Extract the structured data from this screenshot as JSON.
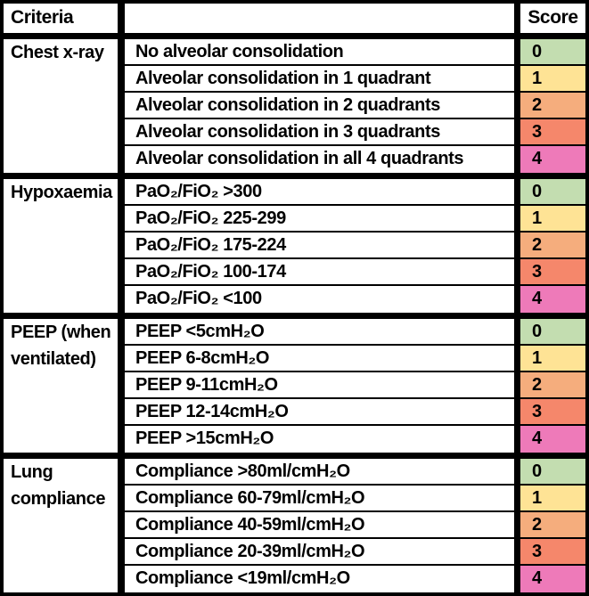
{
  "header": {
    "criteria": "Criteria",
    "description": "",
    "score": "Score"
  },
  "score_colors": {
    "0": "#c3ddb0",
    "1": "#fee395",
    "2": "#f5ad7d",
    "3": "#f5876b",
    "4": "#ee7ab9"
  },
  "sections": [
    {
      "criteria": "Chest x-ray",
      "rows": [
        {
          "label": "No alveolar consolidation",
          "score": "0"
        },
        {
          "label": "Alveolar consolidation in 1 quadrant",
          "score": "1"
        },
        {
          "label": "Alveolar consolidation in 2 quadrants",
          "score": "2"
        },
        {
          "label": "Alveolar consolidation in 3 quadrants",
          "score": "3"
        },
        {
          "label": "Alveolar consolidation in all 4 quadrants",
          "score": "4"
        }
      ]
    },
    {
      "criteria": "Hypoxaemia",
      "rows": [
        {
          "label": "PaO₂/FiO₂ >300",
          "score": "0"
        },
        {
          "label": "PaO₂/FiO₂ 225-299",
          "score": "1"
        },
        {
          "label": "PaO₂/FiO₂ 175-224",
          "score": "2"
        },
        {
          "label": "PaO₂/FiO₂ 100-174",
          "score": "3"
        },
        {
          "label": "PaO₂/FiO₂ <100",
          "score": "4"
        }
      ]
    },
    {
      "criteria": "PEEP (when ventilated)",
      "rows": [
        {
          "label": "PEEP <5cmH₂O",
          "score": "0"
        },
        {
          "label": "PEEP 6-8cmH₂O",
          "score": "1"
        },
        {
          "label": "PEEP 9-11cmH₂O",
          "score": "2"
        },
        {
          "label": "PEEP 12-14cmH₂O",
          "score": "3"
        },
        {
          "label": "PEEP >15cmH₂O",
          "score": "4"
        }
      ]
    },
    {
      "criteria": "Lung compliance",
      "rows": [
        {
          "label": "Compliance >80ml/cmH₂O",
          "score": "0"
        },
        {
          "label": "Compliance 60-79ml/cmH₂O",
          "score": "1"
        },
        {
          "label": "Compliance 40-59ml/cmH₂O",
          "score": "2"
        },
        {
          "label": "Compliance 20-39ml/cmH₂O",
          "score": "3"
        },
        {
          "label": "Compliance <19ml/cmH₂O",
          "score": "4"
        }
      ]
    }
  ]
}
